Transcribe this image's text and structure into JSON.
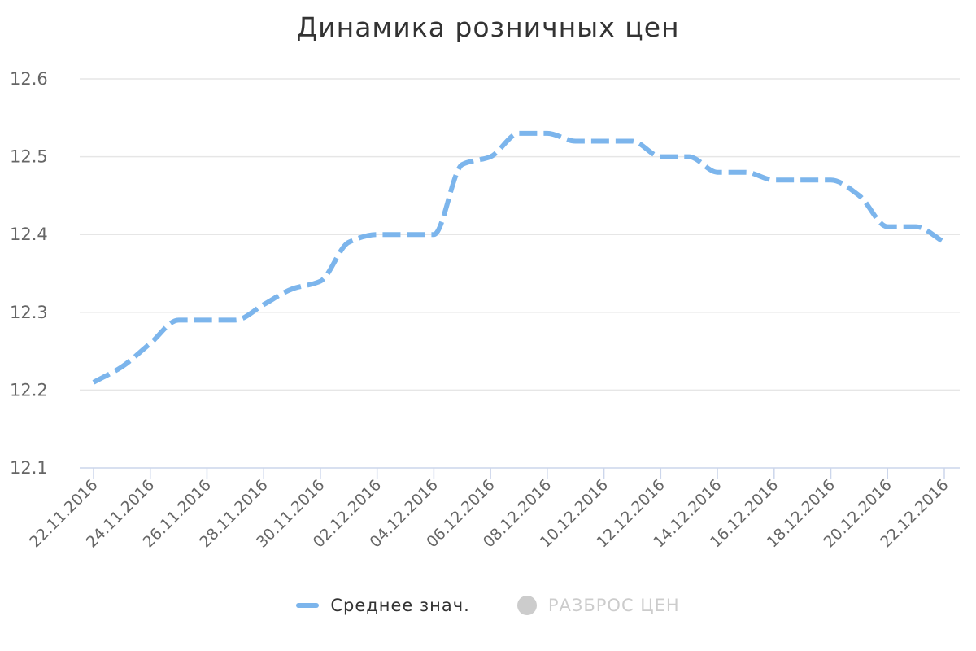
{
  "chart_data": {
    "type": "line",
    "title": "Динамика розничных цен",
    "xlabel": "",
    "ylabel": "",
    "ylim": [
      12.1,
      12.6
    ],
    "yticks": [
      "12.1",
      "12.2",
      "12.3",
      "12.4",
      "12.5",
      "12.6"
    ],
    "grid": true,
    "legend_position": "bottom-center",
    "x": [
      "22.11.2016",
      "23.11.2016",
      "24.11.2016",
      "25.11.2016",
      "26.11.2016",
      "27.11.2016",
      "28.11.2016",
      "29.11.2016",
      "30.11.2016",
      "01.12.2016",
      "02.12.2016",
      "03.12.2016",
      "04.12.2016",
      "05.12.2016",
      "06.12.2016",
      "07.12.2016",
      "08.12.2016",
      "09.12.2016",
      "10.12.2016",
      "11.12.2016",
      "12.12.2016",
      "13.12.2016",
      "14.12.2016",
      "15.12.2016",
      "16.12.2016",
      "17.12.2016",
      "18.12.2016",
      "19.12.2016",
      "20.12.2016",
      "21.12.2016",
      "22.12.2016"
    ],
    "xtick_labels": [
      "22.11.2016",
      "24.11.2016",
      "26.11.2016",
      "28.11.2016",
      "30.11.2016",
      "02.12.2016",
      "04.12.2016",
      "06.12.2016",
      "08.12.2016",
      "10.12.2016",
      "12.12.2016",
      "14.12.2016",
      "16.12.2016",
      "18.12.2016",
      "20.12.2016",
      "22.12.2016"
    ],
    "series": [
      {
        "name": "Среднее знач.",
        "color": "#7cb5ec",
        "line_style": "dashed",
        "values": [
          12.21,
          12.23,
          12.26,
          12.29,
          12.29,
          12.29,
          12.31,
          12.33,
          12.34,
          12.39,
          12.4,
          12.4,
          12.4,
          12.49,
          12.5,
          12.53,
          12.53,
          12.52,
          12.52,
          12.52,
          12.5,
          12.5,
          12.48,
          12.48,
          12.47,
          12.47,
          12.47,
          12.45,
          12.41,
          12.41,
          12.39
        ]
      }
    ],
    "legend": [
      {
        "label": "Среднее знач.",
        "color": "#7cb5ec",
        "marker": "dash",
        "active": true
      },
      {
        "label": "РАЗБРОС ЦЕН",
        "color": "#cccccc",
        "marker": "circle",
        "active": false
      }
    ]
  },
  "colors": {
    "grid": "#e6e6e6",
    "axis": "#ccd6eb",
    "label": "#666666",
    "legend_active_text": "#333333",
    "legend_inactive_text": "#cccccc"
  }
}
